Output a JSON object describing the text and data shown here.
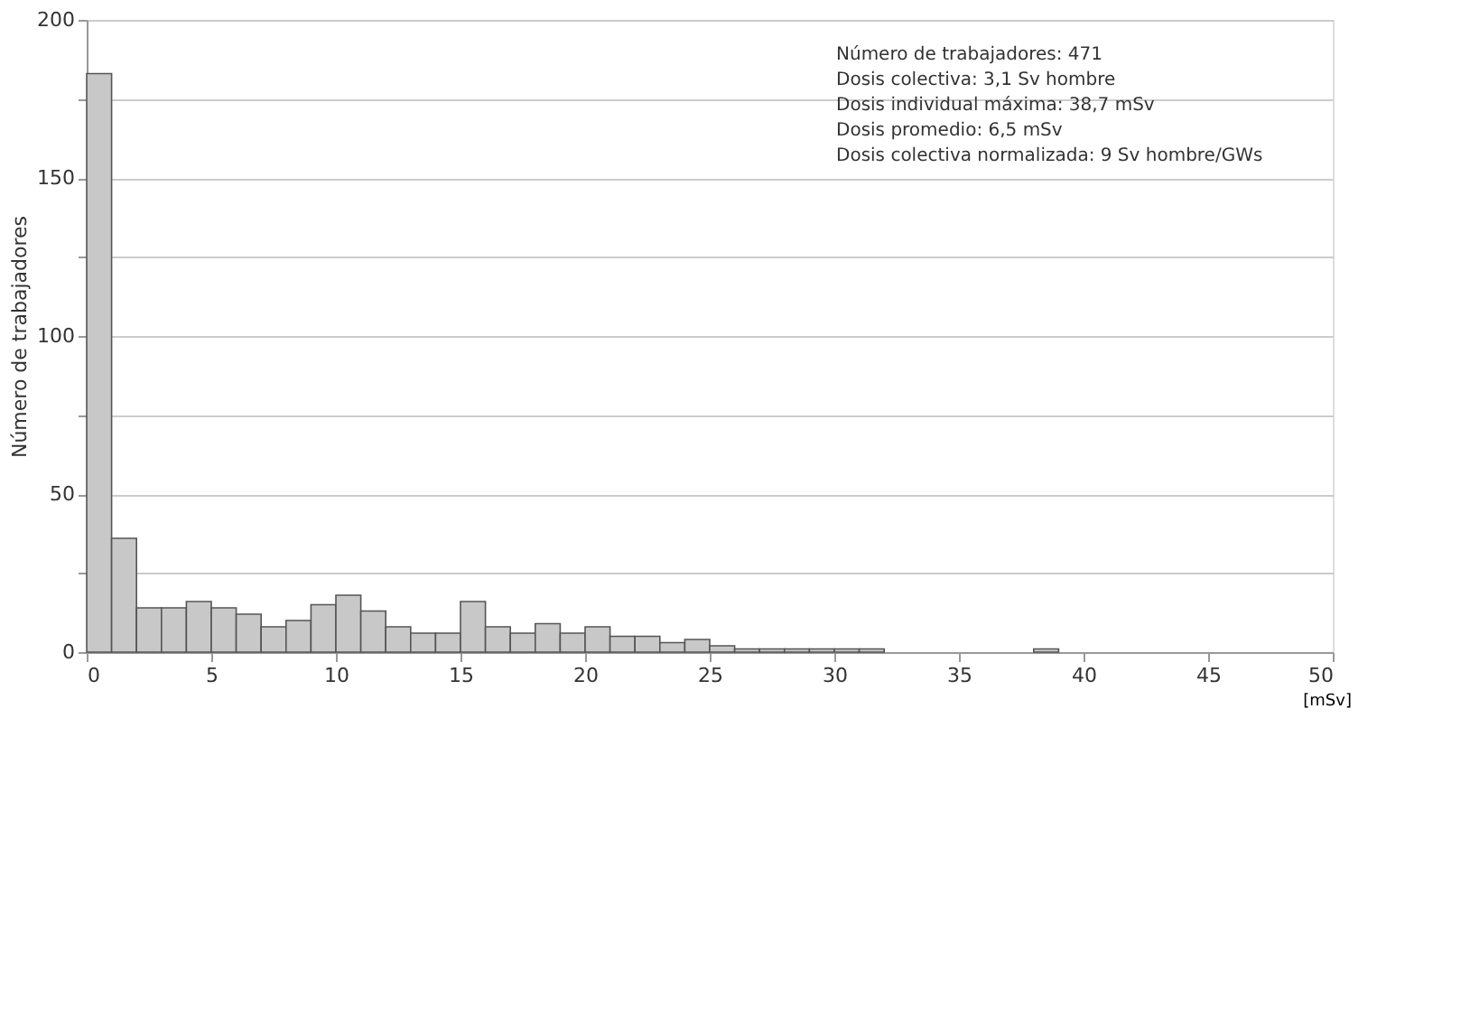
{
  "chart_data": {
    "type": "histogram",
    "bins": [
      0,
      1,
      2,
      3,
      4,
      5,
      6,
      7,
      8,
      9,
      10,
      11,
      12,
      13,
      14,
      15,
      16,
      17,
      18,
      19,
      20,
      21,
      22,
      23,
      24,
      25,
      26,
      27,
      28,
      29,
      30,
      31,
      32,
      33,
      34,
      35,
      36,
      37,
      38,
      39,
      40,
      41,
      42,
      43,
      44,
      45,
      46,
      47,
      48,
      49,
      50
    ],
    "values": [
      183,
      36,
      14,
      14,
      16,
      14,
      12,
      8,
      10,
      15,
      18,
      13,
      8,
      6,
      6,
      16,
      8,
      6,
      9,
      6,
      8,
      5,
      5,
      3,
      4,
      2,
      1,
      1,
      1,
      1,
      1,
      1,
      0,
      0,
      0,
      0,
      0,
      0,
      1,
      0,
      0,
      0,
      0,
      0,
      0,
      0,
      0,
      0,
      0,
      0
    ],
    "color": "#c8c8c8",
    "xlabel": "[mSv]",
    "ylabel": "Número de trabajadores",
    "xlim": [
      0,
      50
    ],
    "xticks": [
      0,
      5,
      10,
      15,
      20,
      25,
      30,
      35,
      40,
      45,
      50
    ],
    "ylim": [
      0,
      200
    ],
    "yticks": [
      0,
      {
        "value": 25,
        "label": null
      },
      50,
      {
        "value": 75,
        "label": null
      },
      100,
      {
        "value": 125,
        "label": null
      },
      150,
      {
        "value": 175,
        "label": null
      },
      200
    ],
    "grid": "y",
    "annotations": [
      "Número de trabajadores: 471",
      "Dosis colectiva: 3,1 Sv hombre",
      "Dosis individual máxima: 38,7 mSv",
      "Dosis promedio: 6,5 mSv",
      "Dosis colectiva normalizada: 9 Sv hombre/GWs"
    ]
  }
}
